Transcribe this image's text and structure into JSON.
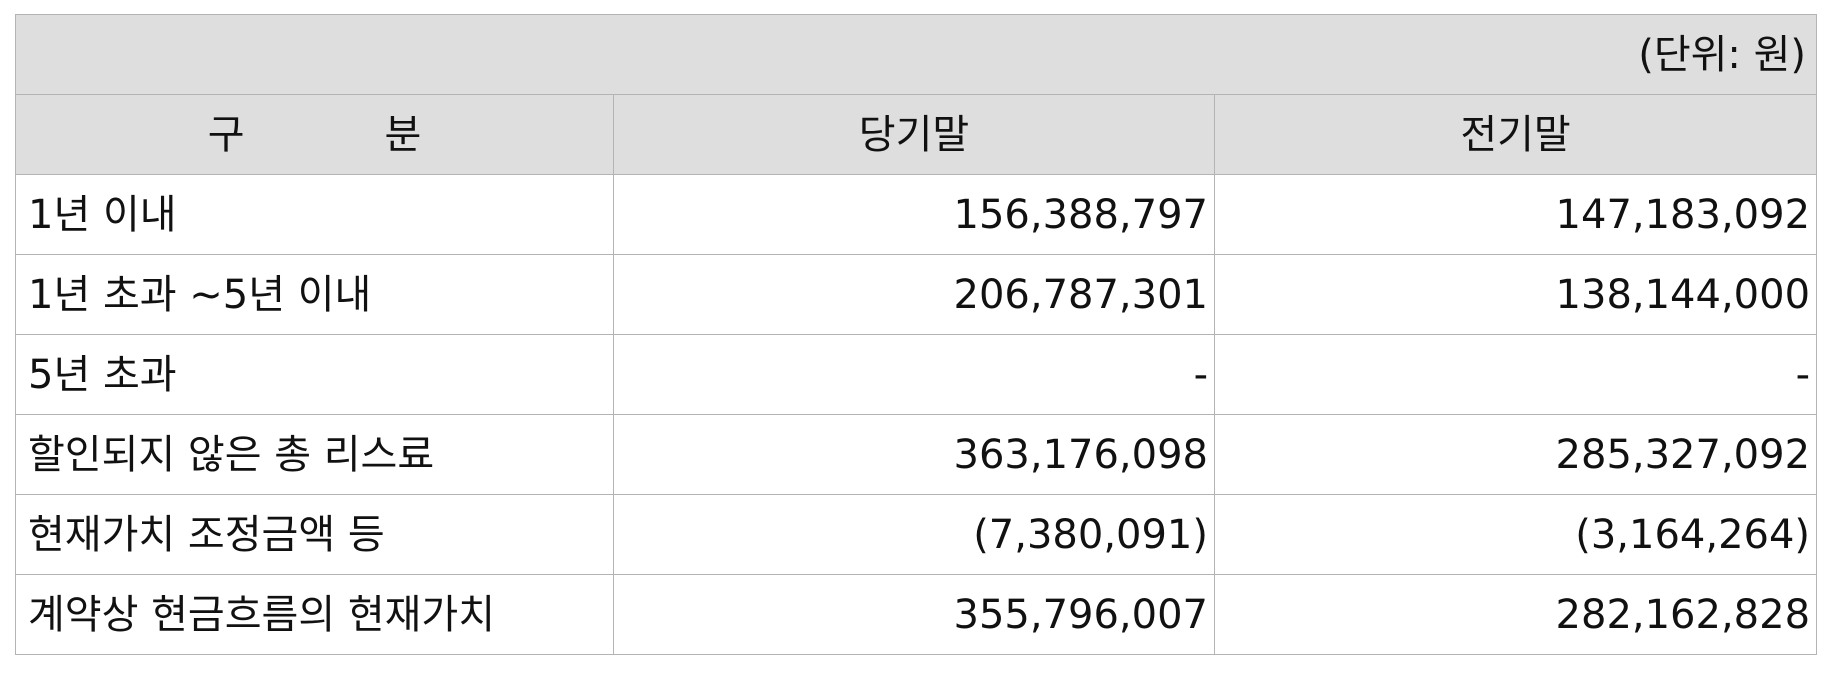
{
  "unit_label": "(단위: 원)",
  "header": {
    "col_label_part1": "구",
    "col_label_part2": "분",
    "col_current": "당기말",
    "col_prior": "전기말"
  },
  "rows": [
    {
      "label": "1년 이내",
      "current": "156,388,797",
      "prior": "147,183,092"
    },
    {
      "label": "1년 초과 ~5년 이내",
      "current": "206,787,301",
      "prior": "138,144,000"
    },
    {
      "label": "5년 초과",
      "current": "-",
      "prior": "-"
    },
    {
      "label": "할인되지 않은 총 리스료",
      "current": "363,176,098",
      "prior": "285,327,092"
    },
    {
      "label": "현재가치 조정금액 등",
      "current": "(7,380,091)",
      "prior": "(3,164,264)"
    },
    {
      "label": "계약상 현금흐름의 현재가치",
      "current": "355,796,007",
      "prior": "282,162,828"
    }
  ]
}
